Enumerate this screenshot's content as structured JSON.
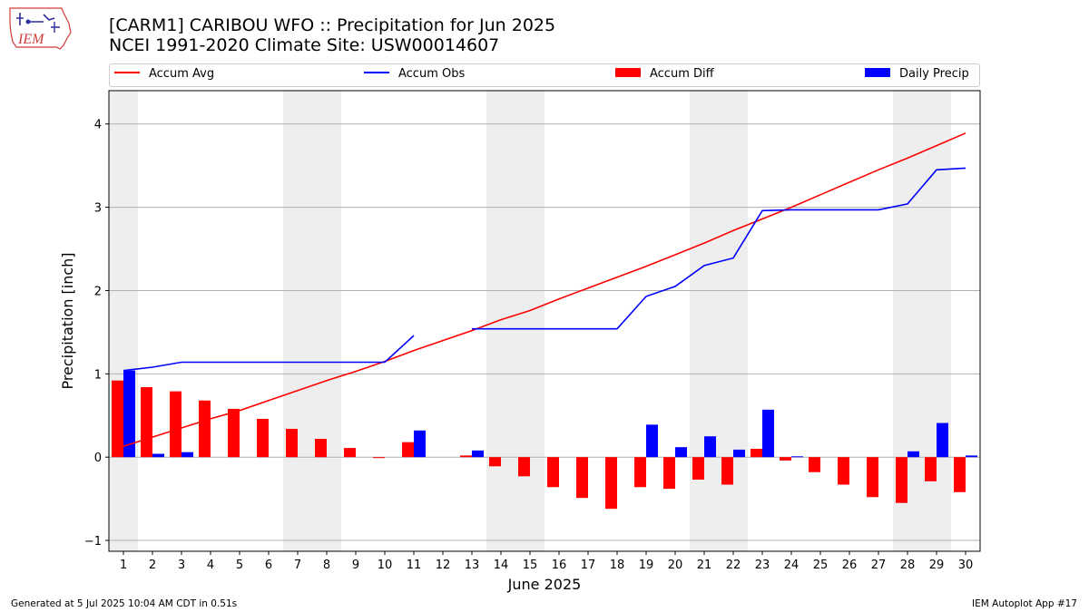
{
  "logo": {
    "text": "IEM"
  },
  "title": "[CARM1] CARIBOU WFO :: Precipitation for Jun 2025",
  "subtitle": "NCEI 1991-2020 Climate Site: USW00014607",
  "footer": {
    "left": "Generated at 5 Jul 2025 10:04 AM CDT in 0.51s",
    "right": "IEM Autoplot App #17"
  },
  "colors": {
    "avg": "#ff0000",
    "obs": "#0000ff",
    "diff": "#ff0000",
    "daily": "#0000ff",
    "weekend": "#eeeeee"
  },
  "chart_data": {
    "type": "bar",
    "xlabel": "June 2025",
    "ylabel": "Precipitation [inch]",
    "ylim": [
      -1.13,
      4.4
    ],
    "yticks": [
      -1,
      0,
      1,
      2,
      3,
      4
    ],
    "grid": "horizontal",
    "legend_position": "top",
    "x": [
      1,
      2,
      3,
      4,
      5,
      6,
      7,
      8,
      9,
      10,
      11,
      12,
      13,
      14,
      15,
      16,
      17,
      18,
      19,
      20,
      21,
      22,
      23,
      24,
      25,
      26,
      27,
      28,
      29,
      30
    ],
    "weekend_days": [
      1,
      7,
      8,
      14,
      15,
      21,
      22,
      28,
      29
    ],
    "series": [
      {
        "name": "Accum Avg",
        "kind": "line",
        "color": "#ff0000",
        "values": [
          0.13,
          0.24,
          0.35,
          0.46,
          0.56,
          0.68,
          0.8,
          0.92,
          1.03,
          1.15,
          1.28,
          1.4,
          1.52,
          1.65,
          1.76,
          1.9,
          2.03,
          2.16,
          2.29,
          2.43,
          2.57,
          2.72,
          2.86,
          3.0,
          3.15,
          3.3,
          3.45,
          3.59,
          3.74,
          3.89
        ]
      },
      {
        "name": "Accum Obs",
        "kind": "line",
        "color": "#0000ff",
        "values": [
          1.04,
          1.08,
          1.14,
          1.14,
          1.14,
          1.14,
          1.14,
          1.14,
          1.14,
          1.14,
          1.46,
          null,
          1.54,
          1.54,
          1.54,
          1.54,
          1.54,
          1.54,
          1.93,
          2.05,
          2.3,
          2.39,
          2.96,
          2.97,
          2.97,
          2.97,
          2.97,
          3.04,
          3.45,
          3.47
        ]
      },
      {
        "name": "Accum Diff",
        "kind": "bar",
        "color": "#ff0000",
        "values": [
          0.92,
          0.84,
          0.79,
          0.68,
          0.58,
          0.46,
          0.34,
          0.22,
          0.11,
          -0.01,
          0.18,
          null,
          0.02,
          -0.11,
          -0.23,
          -0.36,
          -0.49,
          -0.62,
          -0.36,
          -0.38,
          -0.27,
          -0.33,
          0.1,
          -0.04,
          -0.18,
          -0.33,
          -0.48,
          -0.55,
          -0.29,
          -0.42
        ]
      },
      {
        "name": "Daily Precip",
        "kind": "bar",
        "color": "#0000ff",
        "values": [
          1.04,
          0.04,
          0.06,
          0.0,
          0.0,
          0.0,
          0.0,
          0.0,
          0.0,
          0.0,
          0.32,
          null,
          0.08,
          0.0,
          0.0,
          0.0,
          0.0,
          0.0,
          0.39,
          0.12,
          0.25,
          0.09,
          0.57,
          0.01,
          0.0,
          0.0,
          0.0,
          0.07,
          0.41,
          0.02
        ]
      }
    ]
  }
}
